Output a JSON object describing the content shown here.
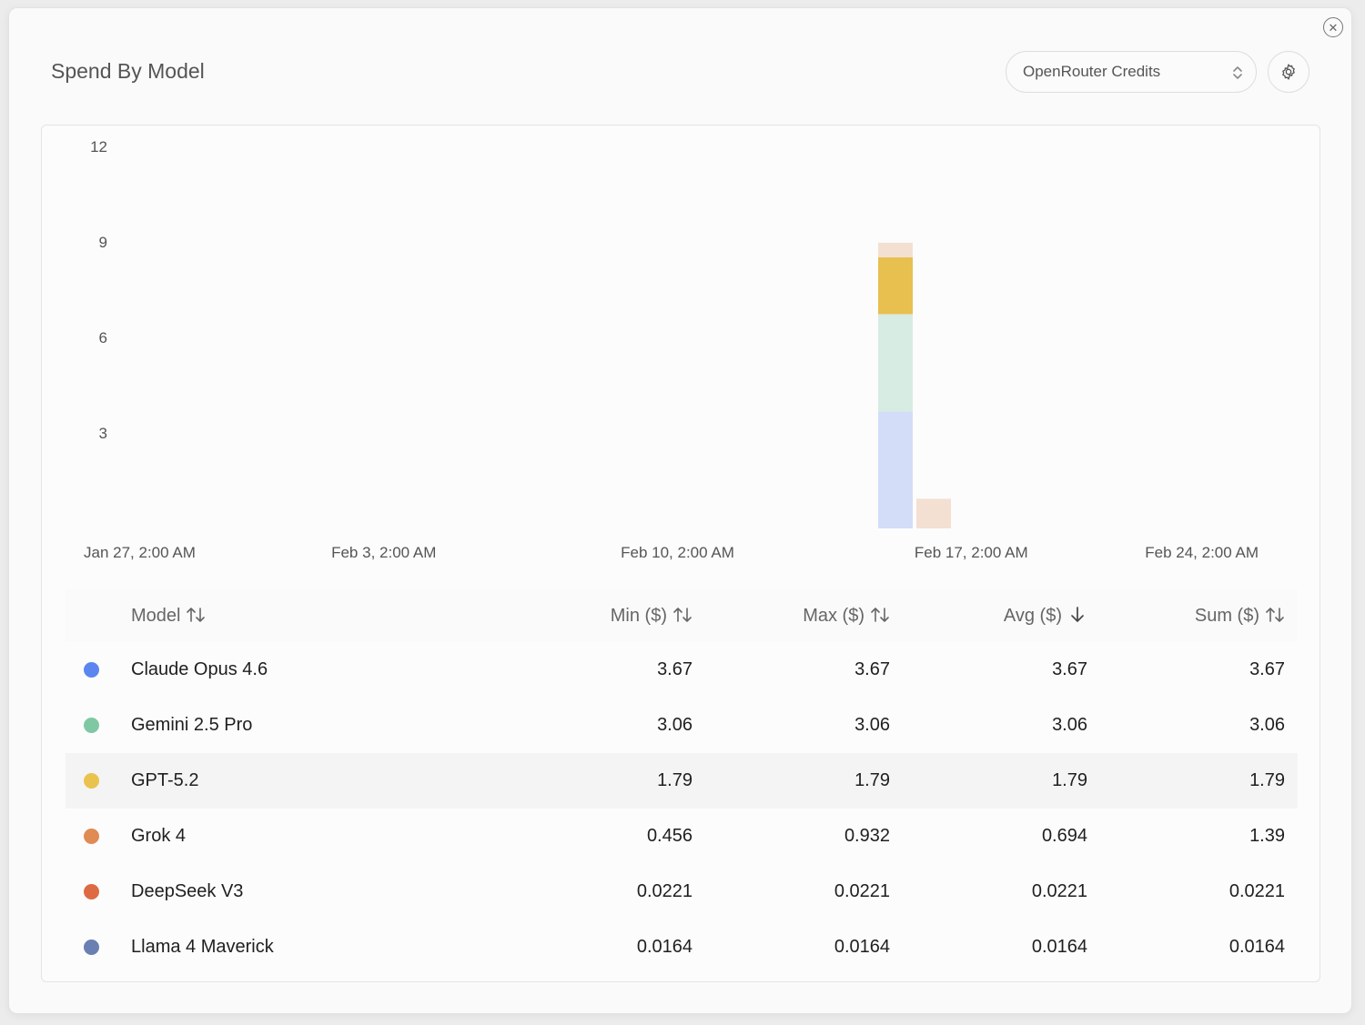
{
  "header": {
    "title": "Spend By Model",
    "credit_source": "OpenRouter Credits"
  },
  "icons": {
    "close": "close-icon",
    "settings": "gear-icon",
    "select": "chevron-updown-icon",
    "sort": "sort-arrows-icon",
    "sort_desc": "arrow-down-icon"
  },
  "chart_data": {
    "type": "bar",
    "stacked": true,
    "x": [
      "Jan 27, 2:00 AM",
      "Feb 3, 2:00 AM",
      "Feb 10, 2:00 AM",
      "Feb 17, 2:00 AM",
      "Feb 24, 2:00 AM"
    ],
    "y_ticks": [
      3,
      6,
      9,
      12
    ],
    "ylim": [
      0,
      12
    ],
    "grid": false,
    "legend": "table below chart",
    "series": [
      {
        "name": "Claude Opus 4.6",
        "color": "#d3ddf7",
        "points": [
          {
            "x": "Feb 17",
            "y": 3.67
          }
        ]
      },
      {
        "name": "Gemini 2.5 Pro",
        "color": "#d7ece3",
        "points": [
          {
            "x": "Feb 17",
            "y": 3.06
          }
        ]
      },
      {
        "name": "GPT-5.2",
        "color": "#e8c04f",
        "points": [
          {
            "x": "Feb 17",
            "y": 1.79
          }
        ]
      },
      {
        "name": "Grok 4",
        "color": "#f3e0d3",
        "points": [
          {
            "x": "Feb 17",
            "y": 0.456
          },
          {
            "x": "Feb 18",
            "y": 0.932
          }
        ]
      }
    ]
  },
  "table": {
    "columns": [
      "Model",
      "Min ($)",
      "Max ($)",
      "Avg ($)",
      "Sum ($)"
    ],
    "sorted_column": "Avg ($)",
    "rows": [
      {
        "model": "Claude Opus 4.6",
        "color": "#5b86f0",
        "min": "3.67",
        "max": "3.67",
        "avg": "3.67",
        "sum": "3.67"
      },
      {
        "model": "Gemini 2.5 Pro",
        "color": "#7fc8a3",
        "min": "3.06",
        "max": "3.06",
        "avg": "3.06",
        "sum": "3.06"
      },
      {
        "model": "GPT-5.2",
        "color": "#eac24e",
        "min": "1.79",
        "max": "1.79",
        "avg": "1.79",
        "sum": "1.79"
      },
      {
        "model": "Grok 4",
        "color": "#e08a54",
        "min": "0.456",
        "max": "0.932",
        "avg": "0.694",
        "sum": "1.39"
      },
      {
        "model": "DeepSeek V3",
        "color": "#de6a44",
        "min": "0.0221",
        "max": "0.0221",
        "avg": "0.0221",
        "sum": "0.0221"
      },
      {
        "model": "Llama 4 Maverick",
        "color": "#6a7fb2",
        "min": "0.0164",
        "max": "0.0164",
        "avg": "0.0164",
        "sum": "0.0164"
      }
    ]
  }
}
